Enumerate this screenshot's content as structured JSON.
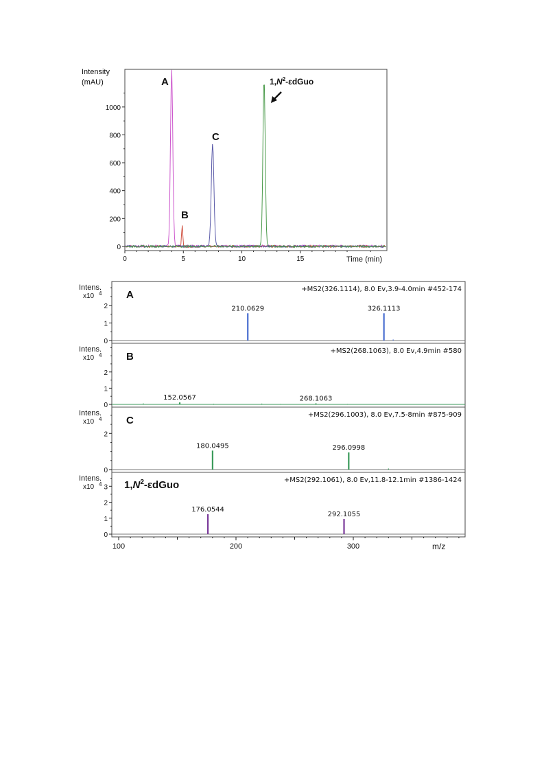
{
  "chart_data": [
    {
      "type": "line",
      "ylabel_line1": "Intensity",
      "ylabel_line2": "(mAU)",
      "xlabel": "Time (min)",
      "xlim": [
        0,
        22.4
      ],
      "ylim": [
        -30,
        1270
      ],
      "x_ticks": [
        0,
        5,
        10,
        15
      ],
      "y_ticks": [
        0,
        200,
        400,
        600,
        800,
        1000
      ],
      "series": [
        {
          "name": "A",
          "color": "#cc55cc",
          "peak_x": 4.0,
          "peak_y": 1270,
          "width": 0.14,
          "label_x": 3.4,
          "label_y": 1190
        },
        {
          "name": "B",
          "color": "#d05040",
          "peak_x": 4.9,
          "peak_y": 155,
          "width": 0.07,
          "label_x": 4.9,
          "label_y": 195
        },
        {
          "name": "C",
          "color": "#5a5aa8",
          "peak_x": 7.5,
          "peak_y": 740,
          "width": 0.16,
          "label_x": 7.8,
          "label_y": 770
        },
        {
          "name": "1,N²-εdGuo",
          "color": "#4a9a4a",
          "peak_x": 11.9,
          "peak_y": 1210,
          "width": 0.14,
          "label_x": 12.0,
          "label_y": 1190
        }
      ],
      "label_A": "A",
      "label_B": "B",
      "label_C": "C",
      "label_d_prefix": "1,",
      "label_d_N": "N",
      "label_d_sup": "2",
      "label_d_suffix": "-εdGuo"
    },
    {
      "type": "bar",
      "xlabel": "m/z",
      "xlim": [
        100,
        300
      ],
      "x_ticks": [
        100,
        200,
        300
      ],
      "y_axis_label": "Intens.",
      "y_axis_unit": "x10",
      "y_axis_exp": "4",
      "panels": [
        {
          "label": "A",
          "header": "+MS2(326.1114), 8.0 Ev,3.9-4.0min #452-174",
          "color": "#4a6fd0",
          "ylim": [
            0,
            3.2
          ],
          "y_ticks": [
            0,
            1,
            2
          ],
          "peaks": [
            {
              "mz": 210.0629,
              "value": 1.55,
              "label": "210.0629"
            },
            {
              "mz": 326.1113,
              "value": 1.55,
              "label": "326.1113"
            }
          ],
          "minor": [
            {
              "mz": 334,
              "value": 0.06
            }
          ]
        },
        {
          "label": "B",
          "header": "+MS2(268.1063), 8.0 Ev,4.9min #580",
          "color": "#3a9a5a",
          "ylim": [
            0,
            3.6
          ],
          "y_ticks": [
            0,
            1,
            2
          ],
          "peaks": [
            {
              "mz": 152.0567,
              "value": 0.12,
              "label": "152.0567"
            },
            {
              "mz": 268.1063,
              "value": 0.06,
              "label": "268.1063"
            }
          ],
          "minor": [
            {
              "mz": 121,
              "value": 0.06
            },
            {
              "mz": 181,
              "value": 0.04
            },
            {
              "mz": 222,
              "value": 0.05
            },
            {
              "mz": 238,
              "value": 0.03
            },
            {
              "mz": 295,
              "value": 0.03
            }
          ]
        },
        {
          "label": "C",
          "header": "+MS2(296.1003), 8.0 Ev,7.5-8min #875-909",
          "color": "#3a9a5a",
          "ylim": [
            0,
            3.3
          ],
          "y_ticks": [
            0,
            2
          ],
          "peaks": [
            {
              "mz": 180.0495,
              "value": 1.05,
              "label": "180.0495"
            },
            {
              "mz": 296.0998,
              "value": 0.95,
              "label": "296.0998"
            }
          ],
          "minor": [
            {
              "mz": 330,
              "value": 0.06
            }
          ]
        },
        {
          "label_prefix": "1,",
          "label_N": "N",
          "label_sup": "2",
          "label_suffix": "-εdGuo",
          "header": "+MS2(292.1061), 8.0 Ev,11.8-12.1min #1386-1424",
          "color": "#7a3a9a",
          "ylim": [
            0,
            3.7
          ],
          "y_ticks": [
            0,
            1,
            2,
            3
          ],
          "peaks": [
            {
              "mz": 176.0544,
              "value": 1.25,
              "label": "176.0544"
            },
            {
              "mz": 292.1055,
              "value": 0.95,
              "label": "292.1055"
            }
          ],
          "minor": []
        }
      ]
    }
  ]
}
